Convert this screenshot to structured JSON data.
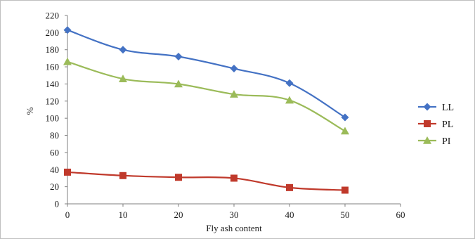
{
  "chart_data": {
    "type": "line",
    "title": "",
    "xlabel": "Fly ash content",
    "ylabel": "%",
    "x": [
      0,
      10,
      20,
      30,
      40,
      50
    ],
    "xlim": [
      0,
      60
    ],
    "ylim": [
      0,
      220
    ],
    "xticks": [
      "0",
      "10",
      "20",
      "30",
      "40",
      "50",
      "60"
    ],
    "yticks": [
      "0",
      "20",
      "40",
      "60",
      "80",
      "100",
      "120",
      "140",
      "160",
      "180",
      "200",
      "220"
    ],
    "grid": false,
    "smooth": true,
    "legend_position": "right",
    "series": [
      {
        "name": "LL",
        "color": "#4472c4",
        "marker": "diamond",
        "values": [
          203,
          180,
          172,
          158,
          141,
          101
        ]
      },
      {
        "name": "PL",
        "color": "#c0392b",
        "marker": "square",
        "values": [
          37,
          33,
          31,
          30,
          19,
          16
        ]
      },
      {
        "name": "PI",
        "color": "#9bbb59",
        "marker": "triangle",
        "values": [
          166,
          146,
          140,
          128,
          121,
          85
        ]
      }
    ]
  }
}
